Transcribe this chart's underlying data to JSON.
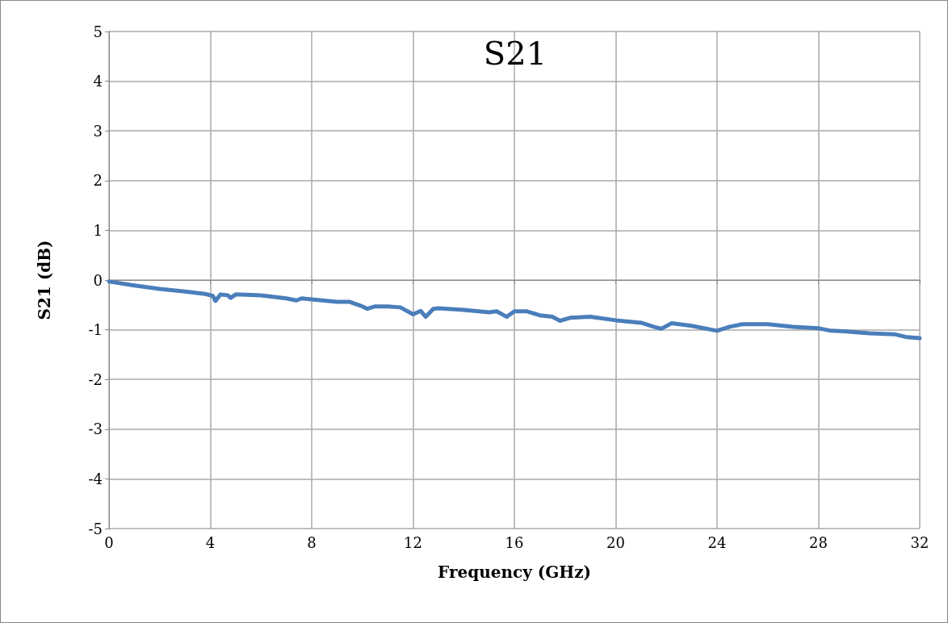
{
  "chart_data": {
    "type": "line",
    "title": "S21",
    "xlabel": "Frequency (GHz)",
    "ylabel": "S21 (dB)",
    "x": [
      0,
      1,
      2,
      3,
      3.8,
      4.1,
      4.2,
      4.4,
      4.7,
      4.8,
      5,
      6,
      7,
      7.4,
      7.6,
      8,
      9,
      9.5,
      10,
      10.2,
      10.5,
      11,
      11.5,
      12,
      12.3,
      12.5,
      12.8,
      13,
      14,
      15,
      15.3,
      15.7,
      16,
      16.5,
      17,
      17.5,
      17.8,
      18.2,
      19,
      20,
      21,
      21.5,
      21.8,
      22.2,
      23,
      24,
      24.5,
      25,
      26,
      27,
      28,
      28.5,
      29,
      30,
      31,
      31.5,
      32
    ],
    "series": [
      {
        "color": "#4a7ebb",
        "values": [
          -0.03,
          -0.11,
          -0.18,
          -0.23,
          -0.28,
          -0.32,
          -0.42,
          -0.29,
          -0.31,
          -0.36,
          -0.29,
          -0.31,
          -0.37,
          -0.41,
          -0.37,
          -0.39,
          -0.44,
          -0.44,
          -0.53,
          -0.58,
          -0.53,
          -0.53,
          -0.55,
          -0.69,
          -0.62,
          -0.74,
          -0.58,
          -0.57,
          -0.6,
          -0.65,
          -0.63,
          -0.74,
          -0.63,
          -0.63,
          -0.71,
          -0.74,
          -0.82,
          -0.76,
          -0.74,
          -0.81,
          -0.86,
          -0.94,
          -0.98,
          -0.87,
          -0.92,
          -1.02,
          -0.94,
          -0.89,
          -0.89,
          -0.94,
          -0.97,
          -1.02,
          -1.03,
          -1.07,
          -1.09,
          -1.15,
          -1.17
        ]
      }
    ],
    "xlim": [
      0,
      32
    ],
    "xticks": [
      0,
      4,
      8,
      12,
      16,
      20,
      24,
      28,
      32
    ],
    "ylim": [
      -5,
      5
    ],
    "yticks": [
      -5,
      -4,
      -3,
      -2,
      -1,
      0,
      1,
      2,
      3,
      4,
      5
    ],
    "grid": true,
    "marker": "none",
    "line_style": "solid"
  }
}
